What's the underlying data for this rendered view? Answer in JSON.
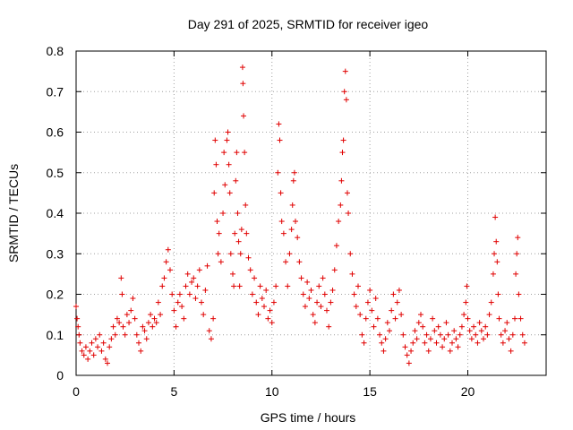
{
  "chart_data": {
    "type": "scatter",
    "title": "Day 291 of 2025, SRMTID for receiver igeo",
    "xlabel": "GPS time / hours",
    "ylabel": "SRMTID / TECUs",
    "xlim": [
      0,
      24
    ],
    "ylim": [
      0,
      0.8
    ],
    "x_ticks": [
      0,
      5,
      10,
      15,
      20
    ],
    "x_tick_labels": [
      "0",
      "5",
      "10",
      "15",
      "20"
    ],
    "y_ticks": [
      0,
      0.1,
      0.2,
      0.3,
      0.4,
      0.5,
      0.6,
      0.7,
      0.8
    ],
    "y_tick_labels": [
      "0",
      "0.1",
      "0.2",
      "0.3",
      "0.4",
      "0.5",
      "0.6",
      "0.7",
      "0.8"
    ],
    "grid": true,
    "marker": "+",
    "color": "#e00000",
    "series": [
      {
        "name": "SRMTID",
        "points": [
          [
            0.0,
            0.17
          ],
          [
            0.05,
            0.14
          ],
          [
            0.1,
            0.12
          ],
          [
            0.15,
            0.1
          ],
          [
            0.2,
            0.08
          ],
          [
            0.3,
            0.06
          ],
          [
            0.4,
            0.05
          ],
          [
            0.5,
            0.07
          ],
          [
            0.6,
            0.04
          ],
          [
            0.7,
            0.06
          ],
          [
            0.8,
            0.08
          ],
          [
            0.9,
            0.05
          ],
          [
            1.0,
            0.09
          ],
          [
            1.1,
            0.07
          ],
          [
            1.2,
            0.1
          ],
          [
            1.3,
            0.06
          ],
          [
            1.4,
            0.08
          ],
          [
            1.5,
            0.04
          ],
          [
            1.6,
            0.03
          ],
          [
            1.7,
            0.07
          ],
          [
            1.8,
            0.09
          ],
          [
            1.9,
            0.12
          ],
          [
            2.0,
            0.1
          ],
          [
            2.1,
            0.14
          ],
          [
            2.2,
            0.13
          ],
          [
            2.3,
            0.24
          ],
          [
            2.35,
            0.2
          ],
          [
            2.4,
            0.12
          ],
          [
            2.5,
            0.1
          ],
          [
            2.6,
            0.15
          ],
          [
            2.7,
            0.13
          ],
          [
            2.8,
            0.16
          ],
          [
            2.9,
            0.19
          ],
          [
            3.0,
            0.14
          ],
          [
            3.1,
            0.1
          ],
          [
            3.2,
            0.08
          ],
          [
            3.3,
            0.06
          ],
          [
            3.4,
            0.12
          ],
          [
            3.5,
            0.11
          ],
          [
            3.6,
            0.09
          ],
          [
            3.7,
            0.13
          ],
          [
            3.8,
            0.15
          ],
          [
            3.9,
            0.12
          ],
          [
            4.0,
            0.14
          ],
          [
            4.1,
            0.13
          ],
          [
            4.2,
            0.18
          ],
          [
            4.3,
            0.15
          ],
          [
            4.4,
            0.22
          ],
          [
            4.5,
            0.24
          ],
          [
            4.6,
            0.28
          ],
          [
            4.7,
            0.31
          ],
          [
            4.8,
            0.26
          ],
          [
            4.9,
            0.2
          ],
          [
            5.0,
            0.16
          ],
          [
            5.1,
            0.12
          ],
          [
            5.2,
            0.18
          ],
          [
            5.3,
            0.2
          ],
          [
            5.4,
            0.17
          ],
          [
            5.5,
            0.14
          ],
          [
            5.6,
            0.22
          ],
          [
            5.7,
            0.25
          ],
          [
            5.8,
            0.2
          ],
          [
            5.9,
            0.23
          ],
          [
            6.0,
            0.24
          ],
          [
            6.1,
            0.19
          ],
          [
            6.2,
            0.22
          ],
          [
            6.3,
            0.26
          ],
          [
            6.4,
            0.18
          ],
          [
            6.5,
            0.15
          ],
          [
            6.6,
            0.21
          ],
          [
            6.7,
            0.27
          ],
          [
            6.8,
            0.11
          ],
          [
            6.9,
            0.09
          ],
          [
            7.0,
            0.14
          ],
          [
            7.05,
            0.45
          ],
          [
            7.1,
            0.58
          ],
          [
            7.15,
            0.52
          ],
          [
            7.2,
            0.38
          ],
          [
            7.25,
            0.3
          ],
          [
            7.3,
            0.35
          ],
          [
            7.4,
            0.28
          ],
          [
            7.5,
            0.4
          ],
          [
            7.55,
            0.55
          ],
          [
            7.6,
            0.47
          ],
          [
            7.7,
            0.58
          ],
          [
            7.75,
            0.6
          ],
          [
            7.8,
            0.52
          ],
          [
            7.85,
            0.45
          ],
          [
            7.9,
            0.3
          ],
          [
            8.0,
            0.25
          ],
          [
            8.05,
            0.22
          ],
          [
            8.1,
            0.35
          ],
          [
            8.15,
            0.48
          ],
          [
            8.2,
            0.55
          ],
          [
            8.25,
            0.4
          ],
          [
            8.3,
            0.33
          ],
          [
            8.35,
            0.22
          ],
          [
            8.4,
            0.3
          ],
          [
            8.45,
            0.36
          ],
          [
            8.5,
            0.76
          ],
          [
            8.52,
            0.72
          ],
          [
            8.55,
            0.64
          ],
          [
            8.6,
            0.55
          ],
          [
            8.65,
            0.42
          ],
          [
            8.7,
            0.35
          ],
          [
            8.8,
            0.29
          ],
          [
            8.9,
            0.26
          ],
          [
            9.0,
            0.2
          ],
          [
            9.1,
            0.24
          ],
          [
            9.2,
            0.18
          ],
          [
            9.3,
            0.15
          ],
          [
            9.4,
            0.22
          ],
          [
            9.5,
            0.19
          ],
          [
            9.6,
            0.17
          ],
          [
            9.7,
            0.21
          ],
          [
            9.8,
            0.14
          ],
          [
            9.9,
            0.16
          ],
          [
            10.0,
            0.13
          ],
          [
            10.1,
            0.18
          ],
          [
            10.2,
            0.22
          ],
          [
            10.3,
            0.5
          ],
          [
            10.35,
            0.62
          ],
          [
            10.4,
            0.58
          ],
          [
            10.45,
            0.45
          ],
          [
            10.5,
            0.38
          ],
          [
            10.6,
            0.35
          ],
          [
            10.7,
            0.28
          ],
          [
            10.8,
            0.22
          ],
          [
            10.9,
            0.3
          ],
          [
            11.0,
            0.36
          ],
          [
            11.05,
            0.42
          ],
          [
            11.1,
            0.48
          ],
          [
            11.15,
            0.5
          ],
          [
            11.2,
            0.38
          ],
          [
            11.3,
            0.34
          ],
          [
            11.4,
            0.28
          ],
          [
            11.5,
            0.24
          ],
          [
            11.6,
            0.2
          ],
          [
            11.7,
            0.17
          ],
          [
            11.8,
            0.23
          ],
          [
            11.9,
            0.19
          ],
          [
            12.0,
            0.21
          ],
          [
            12.1,
            0.15
          ],
          [
            12.2,
            0.13
          ],
          [
            12.3,
            0.18
          ],
          [
            12.4,
            0.22
          ],
          [
            12.5,
            0.17
          ],
          [
            12.6,
            0.24
          ],
          [
            12.7,
            0.2
          ],
          [
            12.8,
            0.16
          ],
          [
            12.9,
            0.12
          ],
          [
            13.0,
            0.18
          ],
          [
            13.1,
            0.21
          ],
          [
            13.2,
            0.26
          ],
          [
            13.3,
            0.32
          ],
          [
            13.4,
            0.38
          ],
          [
            13.5,
            0.42
          ],
          [
            13.55,
            0.48
          ],
          [
            13.6,
            0.55
          ],
          [
            13.65,
            0.58
          ],
          [
            13.7,
            0.7
          ],
          [
            13.75,
            0.75
          ],
          [
            13.8,
            0.68
          ],
          [
            13.85,
            0.45
          ],
          [
            13.9,
            0.4
          ],
          [
            14.0,
            0.3
          ],
          [
            14.1,
            0.25
          ],
          [
            14.2,
            0.2
          ],
          [
            14.3,
            0.17
          ],
          [
            14.4,
            0.22
          ],
          [
            14.5,
            0.15
          ],
          [
            14.6,
            0.1
          ],
          [
            14.7,
            0.08
          ],
          [
            14.8,
            0.14
          ],
          [
            14.9,
            0.18
          ],
          [
            15.0,
            0.21
          ],
          [
            15.1,
            0.16
          ],
          [
            15.2,
            0.12
          ],
          [
            15.3,
            0.19
          ],
          [
            15.4,
            0.14
          ],
          [
            15.5,
            0.1
          ],
          [
            15.6,
            0.08
          ],
          [
            15.7,
            0.06
          ],
          [
            15.8,
            0.09
          ],
          [
            15.9,
            0.13
          ],
          [
            16.0,
            0.11
          ],
          [
            16.1,
            0.16
          ],
          [
            16.2,
            0.2
          ],
          [
            16.3,
            0.14
          ],
          [
            16.4,
            0.18
          ],
          [
            16.5,
            0.21
          ],
          [
            16.6,
            0.15
          ],
          [
            16.7,
            0.1
          ],
          [
            16.8,
            0.07
          ],
          [
            16.9,
            0.05
          ],
          [
            17.0,
            0.03
          ],
          [
            17.1,
            0.06
          ],
          [
            17.2,
            0.08
          ],
          [
            17.3,
            0.11
          ],
          [
            17.4,
            0.09
          ],
          [
            17.5,
            0.13
          ],
          [
            17.6,
            0.15
          ],
          [
            17.7,
            0.12
          ],
          [
            17.8,
            0.08
          ],
          [
            17.9,
            0.1
          ],
          [
            18.0,
            0.06
          ],
          [
            18.1,
            0.09
          ],
          [
            18.2,
            0.14
          ],
          [
            18.3,
            0.11
          ],
          [
            18.4,
            0.08
          ],
          [
            18.5,
            0.12
          ],
          [
            18.6,
            0.1
          ],
          [
            18.7,
            0.07
          ],
          [
            18.8,
            0.09
          ],
          [
            18.9,
            0.13
          ],
          [
            19.0,
            0.1
          ],
          [
            19.1,
            0.06
          ],
          [
            19.2,
            0.08
          ],
          [
            19.3,
            0.11
          ],
          [
            19.4,
            0.09
          ],
          [
            19.5,
            0.07
          ],
          [
            19.6,
            0.1
          ],
          [
            19.7,
            0.12
          ],
          [
            19.8,
            0.15
          ],
          [
            19.9,
            0.18
          ],
          [
            19.95,
            0.22
          ],
          [
            20.0,
            0.14
          ],
          [
            20.1,
            0.11
          ],
          [
            20.2,
            0.09
          ],
          [
            20.3,
            0.12
          ],
          [
            20.4,
            0.1
          ],
          [
            20.5,
            0.08
          ],
          [
            20.6,
            0.13
          ],
          [
            20.7,
            0.11
          ],
          [
            20.8,
            0.09
          ],
          [
            20.9,
            0.12
          ],
          [
            21.0,
            0.1
          ],
          [
            21.1,
            0.15
          ],
          [
            21.2,
            0.18
          ],
          [
            21.3,
            0.25
          ],
          [
            21.35,
            0.3
          ],
          [
            21.4,
            0.39
          ],
          [
            21.45,
            0.33
          ],
          [
            21.5,
            0.28
          ],
          [
            21.55,
            0.2
          ],
          [
            21.6,
            0.14
          ],
          [
            21.7,
            0.1
          ],
          [
            21.8,
            0.08
          ],
          [
            21.9,
            0.11
          ],
          [
            22.0,
            0.13
          ],
          [
            22.1,
            0.09
          ],
          [
            22.2,
            0.06
          ],
          [
            22.3,
            0.1
          ],
          [
            22.4,
            0.14
          ],
          [
            22.45,
            0.25
          ],
          [
            22.5,
            0.3
          ],
          [
            22.55,
            0.34
          ],
          [
            22.6,
            0.2
          ],
          [
            22.7,
            0.14
          ],
          [
            22.8,
            0.1
          ],
          [
            22.9,
            0.08
          ]
        ]
      }
    ]
  }
}
